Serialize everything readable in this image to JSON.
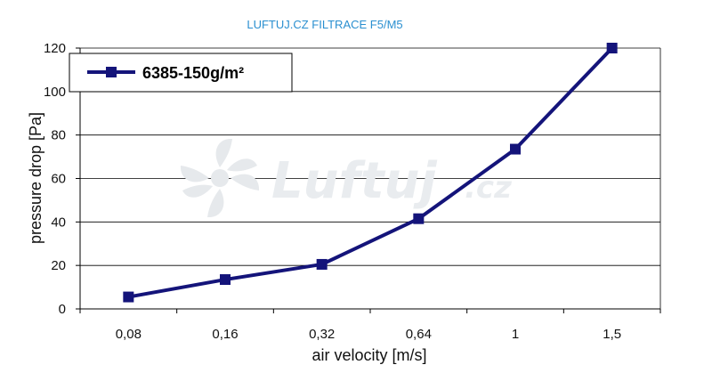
{
  "chart_data": {
    "type": "line",
    "title": "LUFTUJ.CZ  FILTRACE F5/M5",
    "xlabel": "air velocity [m/s]",
    "ylabel": "pressure drop [Pa]",
    "categories": [
      "0,08",
      "0,16",
      "0,32",
      "0,64",
      "1",
      "1,5"
    ],
    "series": [
      {
        "name": "6385-150g/m²",
        "values": [
          5.5,
          13.5,
          20.5,
          41.5,
          73.5,
          120
        ],
        "color": "#14147a"
      }
    ],
    "ylim": [
      0,
      120
    ],
    "yticks": [
      "0",
      "20",
      "40",
      "60",
      "80",
      "100",
      "120"
    ],
    "grid": true,
    "legend": "top-left"
  },
  "watermark": {
    "text": "Luftuj",
    "suffix": ".cz"
  }
}
